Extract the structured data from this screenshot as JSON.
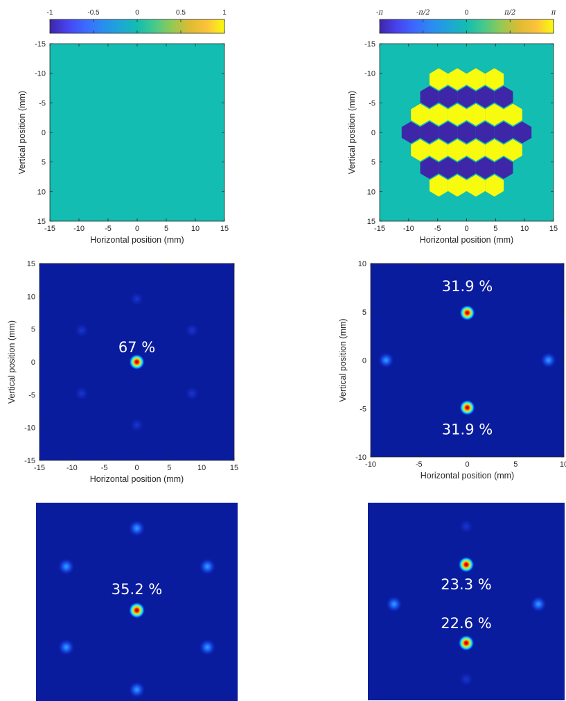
{
  "colors": {
    "parula_low": "#3e26a8",
    "parula_mid": "#13bdb1",
    "parula_high": "#f9fb0e",
    "jet_background": "#0a1c9e",
    "jet_peak": "#c80000",
    "annotation_text": "#ffffff"
  },
  "chart_data": [
    {
      "panel": "top-left",
      "type": "heatmap",
      "colormap": "parula",
      "description_free": true,
      "colorbar": {
        "position": "top",
        "ticks": [
          "-1",
          "-0.5",
          "0",
          "0.5",
          "1"
        ],
        "range": [
          -1,
          1
        ]
      },
      "xlabel": "Horizontal position (mm)",
      "ylabel": "Vertical position (mm)",
      "xlim": [
        -15,
        15
      ],
      "ylim": [
        -15,
        15
      ],
      "y_reversed": true,
      "xticks": [
        "-15",
        "-10",
        "-5",
        "0",
        "5",
        "10",
        "15"
      ],
      "yticks": [
        "-15",
        "-10",
        "-5",
        "0",
        "5",
        "10",
        "15"
      ],
      "uniform_value": 0
    },
    {
      "panel": "top-right",
      "type": "heatmap",
      "colormap": "parula",
      "colorbar": {
        "position": "top",
        "ticks": [
          "-π",
          "-π/2",
          "0",
          "π/2",
          "π"
        ],
        "range": [
          -3.1416,
          3.1416
        ]
      },
      "xlabel": "Horizontal position (mm)",
      "ylabel": "Vertical position (mm)",
      "xlim": [
        -15,
        15
      ],
      "ylim": [
        -15,
        15
      ],
      "y_reversed": true,
      "xticks": [
        "-15",
        "-10",
        "-5",
        "0",
        "5",
        "10",
        "15"
      ],
      "yticks": [
        "-15",
        "-10",
        "-5",
        "0",
        "5",
        "10",
        "15"
      ],
      "background_value": 0,
      "hex_rows": [
        {
          "y": -9,
          "value": 3.1416,
          "x": [
            -4.8,
            -1.6,
            1.6,
            4.8
          ]
        },
        {
          "y": -6,
          "value": -3.1416,
          "x": [
            -6.4,
            -3.2,
            0,
            3.2,
            6.4
          ]
        },
        {
          "y": -3,
          "value": 3.1416,
          "x": [
            -8,
            -4.8,
            -1.6,
            1.6,
            4.8,
            8
          ]
        },
        {
          "y": 0,
          "value": -3.1416,
          "x": [
            -9.6,
            -6.4,
            -3.2,
            0,
            3.2,
            6.4,
            9.6
          ]
        },
        {
          "y": 3,
          "value": 3.1416,
          "x": [
            -8,
            -4.8,
            -1.6,
            1.6,
            4.8,
            8
          ]
        },
        {
          "y": 6,
          "value": -3.1416,
          "x": [
            -6.4,
            -3.2,
            0,
            3.2,
            6.4
          ]
        },
        {
          "y": 9,
          "value": 3.1416,
          "x": [
            -4.8,
            -1.6,
            1.6,
            4.8
          ]
        }
      ]
    },
    {
      "panel": "middle-left",
      "type": "heatmap",
      "colormap": "jet",
      "xlabel": "Horizontal position (mm)",
      "ylabel": "Vertical position (mm)",
      "xlim": [
        -15,
        15
      ],
      "ylim": [
        -15,
        15
      ],
      "xticks": [
        "-15",
        "-10",
        "-5",
        "0",
        "5",
        "10",
        "15"
      ],
      "yticks": [
        "-15",
        "-10",
        "-5",
        "0",
        "5",
        "10",
        "15"
      ],
      "spots": [
        {
          "x": 0,
          "y": 0,
          "strength": 1
        },
        {
          "x": -8.5,
          "y": 4.8,
          "strength": 0.06
        },
        {
          "x": 8.5,
          "y": 4.8,
          "strength": 0.06
        },
        {
          "x": -8.5,
          "y": -4.8,
          "strength": 0.06
        },
        {
          "x": 8.5,
          "y": -4.8,
          "strength": 0.06
        },
        {
          "x": 0,
          "y": 9.6,
          "strength": 0.05
        },
        {
          "x": 0,
          "y": -9.6,
          "strength": 0.05
        }
      ],
      "annotations": [
        {
          "text": "67 %",
          "x": 0,
          "y": 2.3
        }
      ]
    },
    {
      "panel": "middle-right",
      "type": "heatmap",
      "colormap": "jet",
      "ylabel": "Vertical position (mm)",
      "xlabel": "Horizontal position (mm)",
      "xlim": [
        -10,
        10
      ],
      "ylim": [
        -10,
        10
      ],
      "xticks": [
        "-10",
        "-5",
        "0",
        "5",
        "10"
      ],
      "yticks": [
        "-10",
        "-5",
        "0",
        "5",
        "10"
      ],
      "spots": [
        {
          "x": 0,
          "y": 4.9,
          "strength": 1
        },
        {
          "x": 0,
          "y": -4.9,
          "strength": 1
        },
        {
          "x": -8.4,
          "y": 0,
          "strength": 0.3
        },
        {
          "x": 8.4,
          "y": 0,
          "strength": 0.3
        }
      ],
      "annotations": [
        {
          "text": "31.9 %",
          "x": 0,
          "y": 7.7
        },
        {
          "text": "31.9 %",
          "x": 0,
          "y": -7.1
        }
      ]
    },
    {
      "panel": "bottom-left",
      "type": "heatmap",
      "colormap": "jet",
      "xlim": [
        -15,
        15
      ],
      "ylim": [
        -15,
        15
      ],
      "spots": [
        {
          "x": 0,
          "y": -1,
          "strength": 1
        },
        {
          "x": 0,
          "y": 11.2,
          "strength": 0.28
        },
        {
          "x": 0,
          "y": -12.8,
          "strength": 0.28
        },
        {
          "x": -10.5,
          "y": 5.5,
          "strength": 0.28
        },
        {
          "x": 10.5,
          "y": 5.5,
          "strength": 0.28
        },
        {
          "x": -10.5,
          "y": -6.5,
          "strength": 0.28
        },
        {
          "x": 10.5,
          "y": -6.5,
          "strength": 0.28
        }
      ],
      "annotations": [
        {
          "text": "35.2 %",
          "x": 0,
          "y": 2.2
        }
      ]
    },
    {
      "panel": "bottom-right",
      "type": "heatmap",
      "colormap": "jet",
      "xlim": [
        -15,
        15
      ],
      "ylim": [
        -15,
        15
      ],
      "spots": [
        {
          "x": 0,
          "y": 5.6,
          "strength": 1
        },
        {
          "x": 0,
          "y": -6.3,
          "strength": 1
        },
        {
          "x": -11,
          "y": -0.4,
          "strength": 0.42
        },
        {
          "x": 11,
          "y": -0.4,
          "strength": 0.42
        },
        {
          "x": 0,
          "y": 11.4,
          "strength": 0.1
        },
        {
          "x": 0,
          "y": -11.8,
          "strength": 0.1
        }
      ],
      "annotations": [
        {
          "text": "23.3 %",
          "x": 0,
          "y": 2.7
        },
        {
          "text": "22.6 %",
          "x": 0,
          "y": -3.2
        }
      ]
    }
  ]
}
